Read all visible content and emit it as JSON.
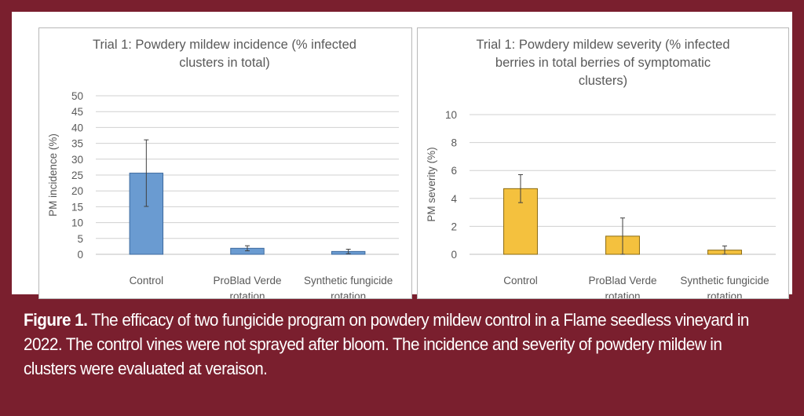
{
  "charts": [
    {
      "type": "bar",
      "title": "Trial 1: Powdery mildew incidence (% infected clusters in total)",
      "title_lines": [
        "Trial 1: Powdery mildew incidence (% infected",
        "clusters in total)"
      ],
      "ylabel": "PM incidence (%)",
      "ylim": [
        0,
        50
      ],
      "yticks": [
        0,
        5,
        10,
        15,
        20,
        25,
        30,
        35,
        40,
        45,
        50
      ],
      "categories": [
        [
          "Control"
        ],
        [
          "ProBlad Verde",
          "rotation"
        ],
        [
          "Synthetic fungicide",
          "rotation"
        ]
      ],
      "values": [
        25.6,
        1.9,
        0.9
      ],
      "errors": [
        10.5,
        0.8,
        0.7
      ],
      "bar_color": "#6a9bd1",
      "bar_stroke": "#3d6a9e",
      "grid": true
    },
    {
      "type": "bar",
      "title": "Trial 1: Powdery mildew severity (% infected berries in total berries of symptomatic clusters)",
      "title_lines": [
        "Trial 1: Powdery mildew severity (% infected",
        "berries in total berries of symptomatic",
        "clusters)"
      ],
      "ylabel": "PM severity (%)",
      "ylim": [
        0,
        10
      ],
      "yticks": [
        0,
        2,
        4,
        6,
        8,
        10
      ],
      "categories": [
        [
          "Control"
        ],
        [
          "ProBlad Verde",
          "rotation"
        ],
        [
          "Synthetic fungicide",
          "rotation"
        ]
      ],
      "values": [
        4.7,
        1.3,
        0.3
      ],
      "errors": [
        1.0,
        1.3,
        0.3
      ],
      "bar_color": "#f4c13e",
      "bar_stroke": "#8a6a10",
      "grid": true
    }
  ],
  "caption": {
    "label": "Figure 1.",
    "text": " The efficacy of two fungicide program on powdery mildew control in a Flame seedless vineyard in 2022. The control vines were not sprayed after bloom. The incidence and severity of powdery mildew in clusters were evaluated at veraison."
  },
  "colors": {
    "frame": "#7a1f2e",
    "grid": "#d0d0d0",
    "text": "#595959"
  }
}
